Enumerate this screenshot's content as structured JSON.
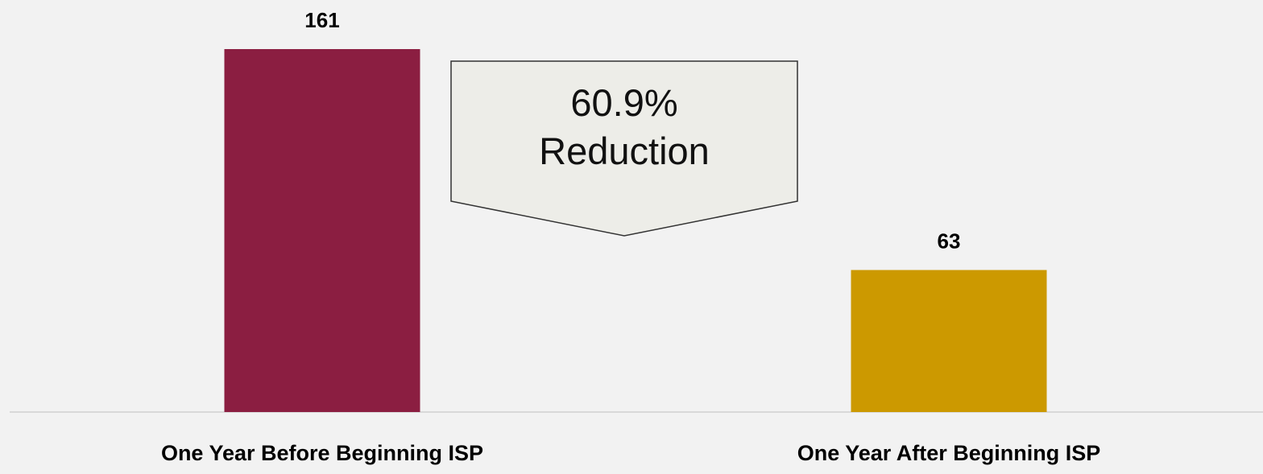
{
  "chart_data": {
    "type": "bar",
    "categories": [
      "One Year Before Beginning ISP",
      "One Year After Beginning ISP"
    ],
    "values": [
      161,
      63
    ],
    "colors": [
      "#8b1e41",
      "#cc9900"
    ],
    "annotation": "60.9%\nReduction"
  }
}
